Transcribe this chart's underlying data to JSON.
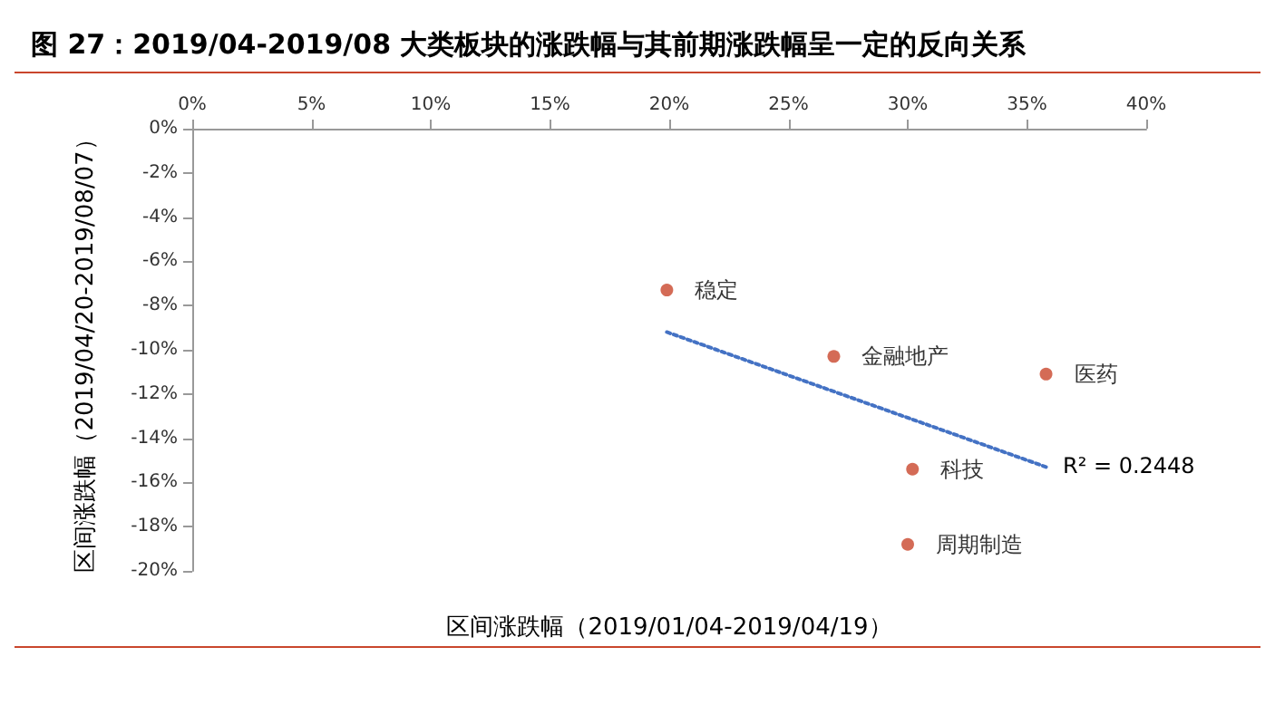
{
  "chart_data": {
    "type": "scatter",
    "title": "图 27：2019/04-2019/08 大类板块的涨跌幅与其前期涨跌幅呈一定的反向关系",
    "xlabel": "区间涨跌幅（2019/01/04-2019/04/19）",
    "ylabel": "区间涨跌幅（2019/04/20-2019/08/07）",
    "xlim": [
      0,
      40
    ],
    "xticks": [
      {
        "value": 0,
        "label": "0%"
      },
      {
        "value": 5,
        "label": "5%"
      },
      {
        "value": 10,
        "label": "10%"
      },
      {
        "value": 15,
        "label": "15%"
      },
      {
        "value": 20,
        "label": "20%"
      },
      {
        "value": 25,
        "label": "25%"
      },
      {
        "value": 30,
        "label": "30%"
      },
      {
        "value": 35,
        "label": "35%"
      },
      {
        "value": 40,
        "label": "40%"
      }
    ],
    "ylim": [
      -20,
      0
    ],
    "yticks": [
      {
        "value": -20,
        "label": "-20%"
      },
      {
        "value": -18,
        "label": "-18%"
      },
      {
        "value": -16,
        "label": "-16%"
      },
      {
        "value": -14,
        "label": "-14%"
      },
      {
        "value": -12,
        "label": "-12%"
      },
      {
        "value": -10,
        "label": "-10%"
      },
      {
        "value": -8,
        "label": "-8%"
      },
      {
        "value": -6,
        "label": "-6%"
      },
      {
        "value": -4,
        "label": "-4%"
      },
      {
        "value": -2,
        "label": "-2%"
      },
      {
        "value": 0,
        "label": "0%"
      }
    ],
    "grid": false,
    "legend": false,
    "marker": "circle",
    "series": [
      {
        "name": "稳定",
        "color": "#c9462c",
        "x": [
          19.9
        ],
        "values": [
          -7.3
        ]
      },
      {
        "name": "金融地产",
        "color": "#c9462c",
        "x": [
          26.9
        ],
        "values": [
          -10.3
        ]
      },
      {
        "name": "医药",
        "color": "#c9462c",
        "x": [
          35.8
        ],
        "values": [
          -11.1
        ]
      },
      {
        "name": "科技",
        "color": "#c9462c",
        "x": [
          30.2
        ],
        "values": [
          -15.4
        ]
      },
      {
        "name": "周期制造",
        "color": "#c9462c",
        "x": [
          30.0
        ],
        "values": [
          -18.8
        ]
      },
      {
        "type": "line",
        "color": "#4472c4",
        "line_style": "dotted",
        "marker": "none",
        "x": [
          19.9,
          35.8
        ],
        "values": [
          -9.2,
          -15.3
        ]
      }
    ],
    "annotations": [
      "R² = 0.2448"
    ]
  }
}
